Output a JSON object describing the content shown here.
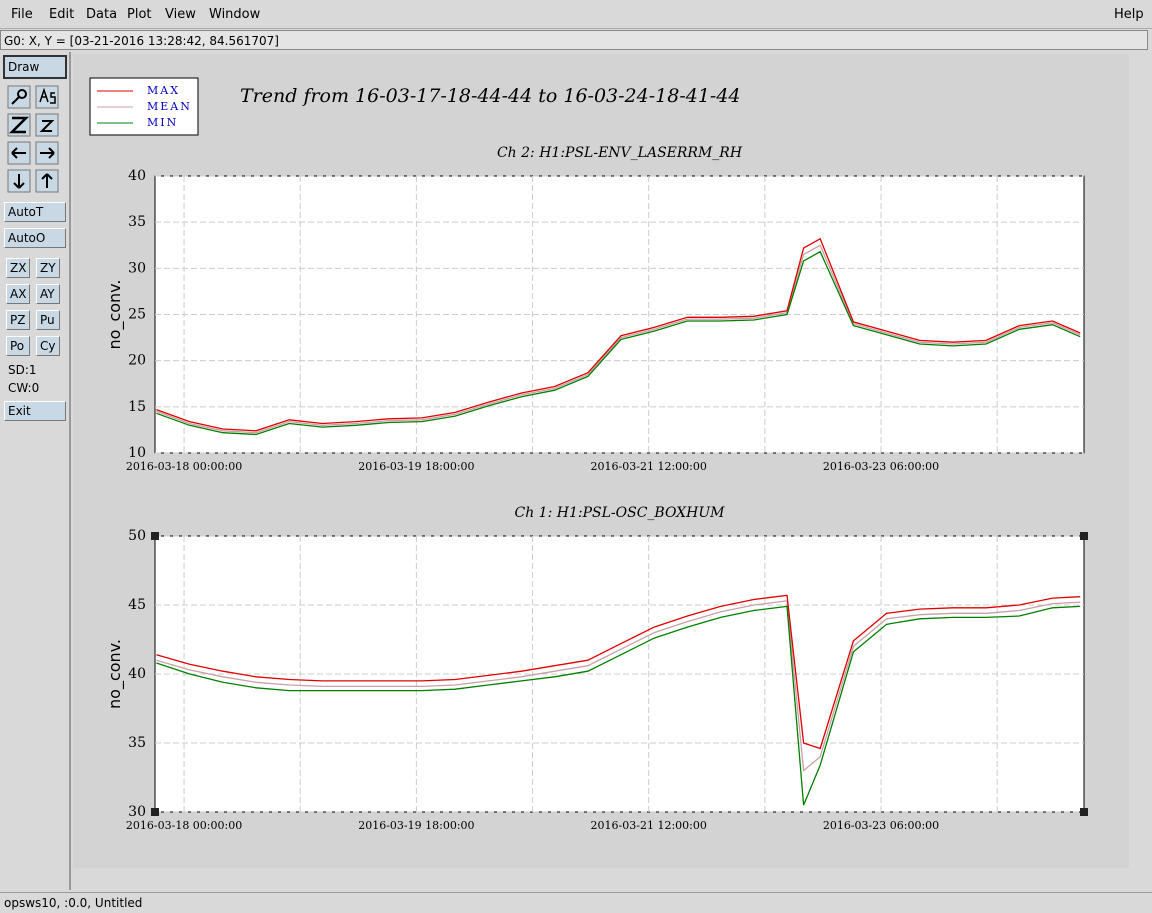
{
  "menu": {
    "items": [
      "File",
      "Edit",
      "Data",
      "Plot",
      "View",
      "Window"
    ],
    "help": "Help"
  },
  "status": "G0: X, Y = [03-21-2016 13:28:42, 84.561707]",
  "toolbar": {
    "draw": "Draw",
    "buttons": [
      "AutoT",
      "AutoO"
    ],
    "grid_buttons": [
      "ZX",
      "ZY",
      "AX",
      "AY",
      "PZ",
      "Pu",
      "Po",
      "Cy"
    ],
    "counters": [
      "SD:1",
      "CW:0"
    ],
    "exit": "Exit"
  },
  "plot_title": "Trend from 16-03-17-18-44-44 to 16-03-24-18-41-44",
  "footer": "opsws10, :0.0, Untitled",
  "chart_data": [
    {
      "type": "line",
      "title": "Ch 2: H1:PSL-ENV_LASERRM_RH",
      "y_label": "no_conv.",
      "xlim": [
        "2016-03-17 18:44:44",
        "2016-03-24 18:41:44"
      ],
      "xticks": [
        "2016-03-18 00:00:00",
        {
          "value": "2016-03-18 21:00:00",
          "label": null
        },
        "2016-03-19 18:00:00",
        {
          "value": "2016-03-20 15:00:00",
          "label": null
        },
        "2016-03-21 12:00:00",
        {
          "value": "2016-03-22 09:00:00",
          "label": null
        },
        "2016-03-23 06:00:00",
        {
          "value": "2016-03-24 03:00:00",
          "label": null
        }
      ],
      "ylim": [
        10,
        40
      ],
      "yticks": [
        10,
        15,
        20,
        25,
        30,
        35,
        40
      ],
      "grid": true,
      "x": [
        "2016-03-17 19:00:00",
        "2016-03-18 01:00:00",
        "2016-03-18 07:00:00",
        "2016-03-18 13:00:00",
        "2016-03-18 19:00:00",
        "2016-03-19 01:00:00",
        "2016-03-19 07:00:00",
        "2016-03-19 13:00:00",
        "2016-03-19 19:00:00",
        "2016-03-20 01:00:00",
        "2016-03-20 07:00:00",
        "2016-03-20 13:00:00",
        "2016-03-20 19:00:00",
        "2016-03-21 01:00:00",
        "2016-03-21 07:00:00",
        "2016-03-21 13:00:00",
        "2016-03-21 19:00:00",
        "2016-03-22 01:00:00",
        "2016-03-22 07:00:00",
        "2016-03-22 13:00:00",
        "2016-03-22 16:00:00",
        "2016-03-22 19:00:00",
        "2016-03-23 01:00:00",
        "2016-03-23 07:00:00",
        "2016-03-23 13:00:00",
        "2016-03-23 19:00:00",
        "2016-03-24 01:00:00",
        "2016-03-24 07:00:00",
        "2016-03-24 13:00:00",
        "2016-03-24 18:00:00"
      ],
      "series": [
        {
          "name": "MAX",
          "color": "#e00000",
          "values": [
            14.7,
            13.4,
            12.6,
            12.4,
            13.6,
            13.2,
            13.4,
            13.7,
            13.8,
            14.4,
            15.5,
            16.5,
            17.2,
            18.7,
            22.7,
            23.6,
            24.7,
            24.7,
            24.8,
            25.4,
            32.2,
            33.2,
            24.2,
            23.2,
            22.2,
            22.0,
            22.2,
            23.8,
            24.3,
            23.0
          ]
        },
        {
          "name": "MEAN",
          "color": "#c8a0a8",
          "values": [
            14.5,
            13.2,
            12.4,
            12.2,
            13.4,
            13.0,
            13.2,
            13.5,
            13.6,
            14.2,
            15.3,
            16.3,
            17.0,
            18.5,
            22.5,
            23.4,
            24.5,
            24.5,
            24.6,
            25.2,
            31.5,
            32.5,
            24.0,
            23.0,
            22.0,
            21.8,
            22.0,
            23.6,
            24.1,
            22.8
          ]
        },
        {
          "name": "MIN",
          "color": "#008000",
          "values": [
            14.3,
            13.0,
            12.2,
            12.0,
            13.2,
            12.8,
            13.0,
            13.3,
            13.4,
            14.0,
            15.1,
            16.1,
            16.8,
            18.3,
            22.3,
            23.2,
            24.3,
            24.3,
            24.4,
            25.0,
            30.8,
            31.8,
            23.8,
            22.8,
            21.8,
            21.6,
            21.8,
            23.4,
            23.9,
            22.6
          ]
        }
      ]
    },
    {
      "type": "line",
      "title": "Ch 1: H1:PSL-OSC_BOXHUM",
      "y_label": "no_conv.",
      "xlim": [
        "2016-03-17 18:44:44",
        "2016-03-24 18:41:44"
      ],
      "xticks": [
        "2016-03-18 00:00:00",
        {
          "value": "2016-03-18 21:00:00",
          "label": null
        },
        "2016-03-19 18:00:00",
        {
          "value": "2016-03-20 15:00:00",
          "label": null
        },
        "2016-03-21 12:00:00",
        {
          "value": "2016-03-22 09:00:00",
          "label": null
        },
        "2016-03-23 06:00:00",
        {
          "value": "2016-03-24 03:00:00",
          "label": null
        }
      ],
      "ylim": [
        30,
        50
      ],
      "yticks": [
        30,
        35,
        40,
        45,
        50
      ],
      "grid": true,
      "x": [
        "2016-03-17 19:00:00",
        "2016-03-18 01:00:00",
        "2016-03-18 07:00:00",
        "2016-03-18 13:00:00",
        "2016-03-18 19:00:00",
        "2016-03-19 01:00:00",
        "2016-03-19 07:00:00",
        "2016-03-19 13:00:00",
        "2016-03-19 19:00:00",
        "2016-03-20 01:00:00",
        "2016-03-20 07:00:00",
        "2016-03-20 13:00:00",
        "2016-03-20 19:00:00",
        "2016-03-21 01:00:00",
        "2016-03-21 07:00:00",
        "2016-03-21 13:00:00",
        "2016-03-21 19:00:00",
        "2016-03-22 01:00:00",
        "2016-03-22 07:00:00",
        "2016-03-22 13:00:00",
        "2016-03-22 16:00:00",
        "2016-03-22 19:00:00",
        "2016-03-23 01:00:00",
        "2016-03-23 07:00:00",
        "2016-03-23 13:00:00",
        "2016-03-23 19:00:00",
        "2016-03-24 01:00:00",
        "2016-03-24 07:00:00",
        "2016-03-24 13:00:00",
        "2016-03-24 18:00:00"
      ],
      "series": [
        {
          "name": "MAX",
          "color": "#e00000",
          "values": [
            41.4,
            40.7,
            40.2,
            39.8,
            39.6,
            39.5,
            39.5,
            39.5,
            39.5,
            39.6,
            39.9,
            40.2,
            40.6,
            41.0,
            42.2,
            43.4,
            44.2,
            44.9,
            45.4,
            45.7,
            35.0,
            34.6,
            42.4,
            44.4,
            44.7,
            44.8,
            44.8,
            45.0,
            45.5,
            45.6
          ]
        },
        {
          "name": "MEAN",
          "color": "#c8a0a8",
          "values": [
            41.0,
            40.3,
            39.8,
            39.4,
            39.2,
            39.1,
            39.1,
            39.1,
            39.1,
            39.2,
            39.5,
            39.8,
            40.2,
            40.6,
            41.8,
            43.0,
            43.8,
            44.5,
            45.0,
            45.3,
            33.0,
            34.0,
            42.0,
            44.0,
            44.3,
            44.4,
            44.4,
            44.6,
            45.1,
            45.2
          ]
        },
        {
          "name": "MIN",
          "color": "#008000",
          "values": [
            40.8,
            40.0,
            39.4,
            39.0,
            38.8,
            38.8,
            38.8,
            38.8,
            38.8,
            38.9,
            39.2,
            39.5,
            39.8,
            40.2,
            41.4,
            42.6,
            43.4,
            44.1,
            44.6,
            44.9,
            30.5,
            33.4,
            41.6,
            43.6,
            44.0,
            44.1,
            44.1,
            44.2,
            44.8,
            44.9
          ]
        }
      ]
    }
  ]
}
